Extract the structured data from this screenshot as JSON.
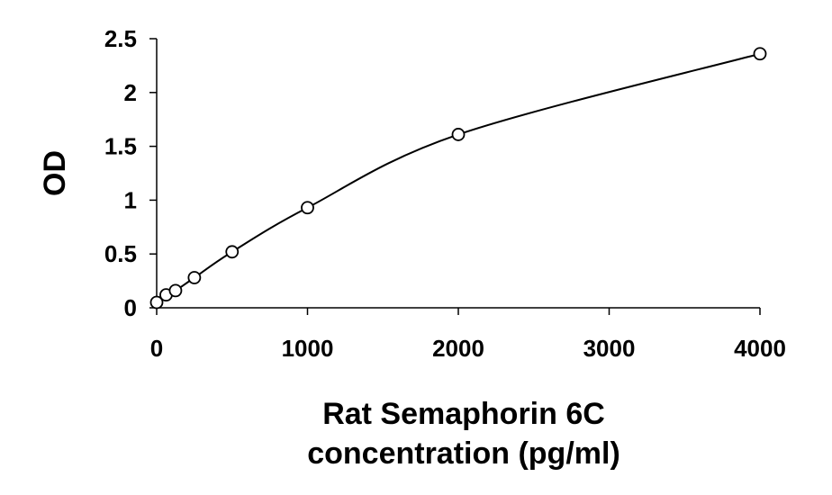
{
  "chart_data": {
    "type": "scatter",
    "title": "",
    "xlabel_lines": [
      "Rat Semaphorin 6C",
      "concentration (pg/ml)"
    ],
    "ylabel": "OD",
    "xlim": [
      0,
      4000
    ],
    "ylim": [
      0,
      2.5
    ],
    "x_ticks": [
      "0",
      "1000",
      "2000",
      "3000",
      "4000"
    ],
    "y_ticks": [
      "0",
      "0.5",
      "1",
      "1.5",
      "2",
      "2.5"
    ],
    "grid": false,
    "legend": "none",
    "fit_line": true,
    "series": [
      {
        "x": [
          0,
          62.5,
          125,
          250,
          500,
          1000,
          2000,
          4000
        ],
        "y": [
          0.05,
          0.12,
          0.16,
          0.28,
          0.52,
          0.93,
          1.61,
          2.36
        ]
      }
    ]
  }
}
